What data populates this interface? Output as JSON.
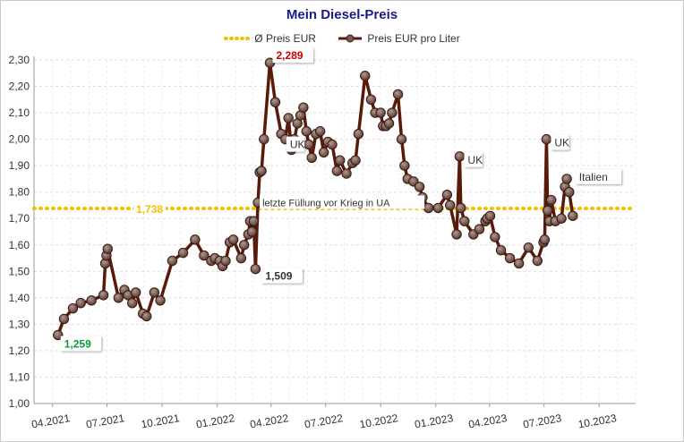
{
  "chart_data": {
    "type": "line",
    "title": "Mein Diesel-Preis",
    "legend_placement": "top",
    "grid": true,
    "ylim": [
      1.0,
      2.3
    ],
    "y_ticks": [
      "1,00",
      "1,10",
      "1,20",
      "1,30",
      "1,40",
      "1,50",
      "1,60",
      "1,70",
      "1,80",
      "1,90",
      "2,00",
      "2,10",
      "2,20",
      "2,30"
    ],
    "x_tick_labels": [
      "04.2021",
      "07.2021",
      "10.2021",
      "01.2022",
      "04.2022",
      "07.2022",
      "10.2022",
      "01.2023",
      "04.2023",
      "07.2023",
      "10.2023"
    ],
    "series": [
      {
        "name": "Ø Preis EUR",
        "color": "#f5c000",
        "style": "dotted",
        "constant": 1.738,
        "label": "1,738"
      },
      {
        "name": "Preis EUR pro Liter",
        "color": "#5a1a0a",
        "x": [
          "2021-04-10",
          "2021-04-20",
          "2021-05-05",
          "2021-05-18",
          "2021-06-05",
          "2021-06-25",
          "2021-06-28",
          "2021-06-30",
          "2021-07-02",
          "2021-07-20",
          "2021-07-30",
          "2021-08-05",
          "2021-08-12",
          "2021-08-18",
          "2021-08-30",
          "2021-09-05",
          "2021-09-18",
          "2021-09-28",
          "2021-10-18",
          "2021-11-05",
          "2021-11-25",
          "2021-12-10",
          "2021-12-22",
          "2021-12-28",
          "2022-01-05",
          "2022-01-10",
          "2022-01-15",
          "2022-01-22",
          "2022-01-28",
          "2022-02-10",
          "2022-02-15",
          "2022-02-22",
          "2022-02-25",
          "2022-02-28",
          "2022-03-03",
          "2022-03-06",
          "2022-03-10",
          "2022-03-13",
          "2022-03-16",
          "2022-03-20",
          "2022-03-30",
          "2022-04-08",
          "2022-04-18",
          "2022-04-25",
          "2022-04-30",
          "2022-05-05",
          "2022-05-10",
          "2022-05-15",
          "2022-05-20",
          "2022-05-25",
          "2022-05-30",
          "2022-06-03",
          "2022-06-08",
          "2022-06-15",
          "2022-06-22",
          "2022-06-28",
          "2022-07-05",
          "2022-07-12",
          "2022-07-20",
          "2022-07-25",
          "2022-08-05",
          "2022-08-15",
          "2022-08-20",
          "2022-08-25",
          "2022-09-05",
          "2022-09-15",
          "2022-09-22",
          "2022-10-01",
          "2022-10-05",
          "2022-10-10",
          "2022-10-15",
          "2022-10-20",
          "2022-10-30",
          "2022-11-05",
          "2022-11-10",
          "2022-11-15",
          "2022-11-25",
          "2022-12-05",
          "2022-12-10",
          "2022-12-20",
          "2023-01-05",
          "2023-01-20",
          "2023-01-25",
          "2023-02-05",
          "2023-02-10",
          "2023-02-12",
          "2023-02-18",
          "2023-03-05",
          "2023-03-15",
          "2023-03-25",
          "2023-03-28",
          "2023-04-02",
          "2023-04-10",
          "2023-04-20",
          "2023-05-05",
          "2023-05-20",
          "2023-06-05",
          "2023-06-20",
          "2023-06-30",
          "2023-07-02",
          "2023-07-05",
          "2023-07-07",
          "2023-07-10",
          "2023-07-13",
          "2023-07-20",
          "2023-07-30",
          "2023-08-05",
          "2023-08-08",
          "2023-08-12",
          "2023-08-18"
        ],
        "values": [
          1.259,
          1.32,
          1.36,
          1.38,
          1.39,
          1.41,
          1.53,
          1.56,
          1.585,
          1.4,
          1.43,
          1.41,
          1.38,
          1.42,
          1.34,
          1.33,
          1.42,
          1.39,
          1.54,
          1.57,
          1.62,
          1.56,
          1.54,
          1.55,
          1.54,
          1.52,
          1.54,
          1.61,
          1.62,
          1.55,
          1.6,
          1.64,
          1.69,
          1.65,
          1.69,
          1.509,
          1.76,
          1.875,
          1.88,
          2.0,
          2.289,
          2.14,
          2.02,
          2.0,
          2.08,
          1.96,
          2.0,
          2.06,
          2.09,
          2.12,
          2.03,
          1.98,
          1.93,
          2.02,
          2.03,
          1.95,
          1.99,
          1.98,
          1.88,
          1.92,
          1.87,
          1.91,
          1.92,
          2.02,
          2.24,
          2.15,
          2.1,
          2.1,
          2.05,
          2.05,
          2.06,
          2.1,
          2.17,
          2.0,
          1.9,
          1.85,
          1.84,
          1.82,
          1.78,
          1.74,
          1.74,
          1.79,
          1.75,
          1.64,
          1.935,
          1.74,
          1.69,
          1.64,
          1.66,
          1.69,
          1.7,
          1.71,
          1.63,
          1.58,
          1.55,
          1.53,
          1.59,
          1.54,
          1.61,
          1.62,
          2.0,
          1.73,
          1.69,
          1.77,
          1.69,
          1.7,
          1.82,
          1.85,
          1.8,
          1.71
        ]
      }
    ],
    "annotations": [
      {
        "text": "2,289",
        "x": "2022-03-30",
        "y": 2.289,
        "color": "#cc0000"
      },
      {
        "text": "1,259",
        "x": "2021-04-10",
        "y": 1.259,
        "color": "#0a9a3a"
      },
      {
        "text": "1,509",
        "x": "2022-03-06",
        "y": 1.509,
        "color": "#333333"
      },
      {
        "text": "UK",
        "x": "2022-04-25",
        "y": 2.0,
        "color": "#333333"
      },
      {
        "text": "UK",
        "x": "2023-02-10",
        "y": 1.935,
        "color": "#333333"
      },
      {
        "text": "UK",
        "x": "2023-07-02",
        "y": 2.0,
        "color": "#333333"
      },
      {
        "text": "Italien",
        "x": "2023-08-12",
        "y": 1.85,
        "color": "#333333"
      },
      {
        "text": "letzte Füllung vor Krieg in UA",
        "x": "2022-03-10",
        "y": 1.76,
        "color": "#333333"
      }
    ]
  }
}
